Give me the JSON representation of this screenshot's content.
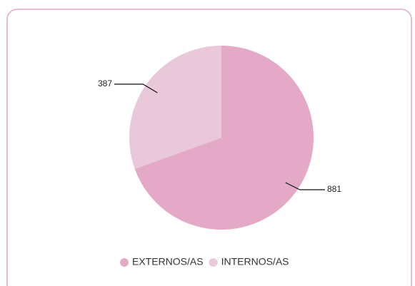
{
  "chart_data": {
    "type": "pie",
    "categories": [
      "EXTERNOS/AS",
      "INTERNOS/AS"
    ],
    "values": [
      881,
      387
    ],
    "colors": [
      "#e5a9c8",
      "#e9c8da"
    ],
    "legend": "bottom"
  }
}
